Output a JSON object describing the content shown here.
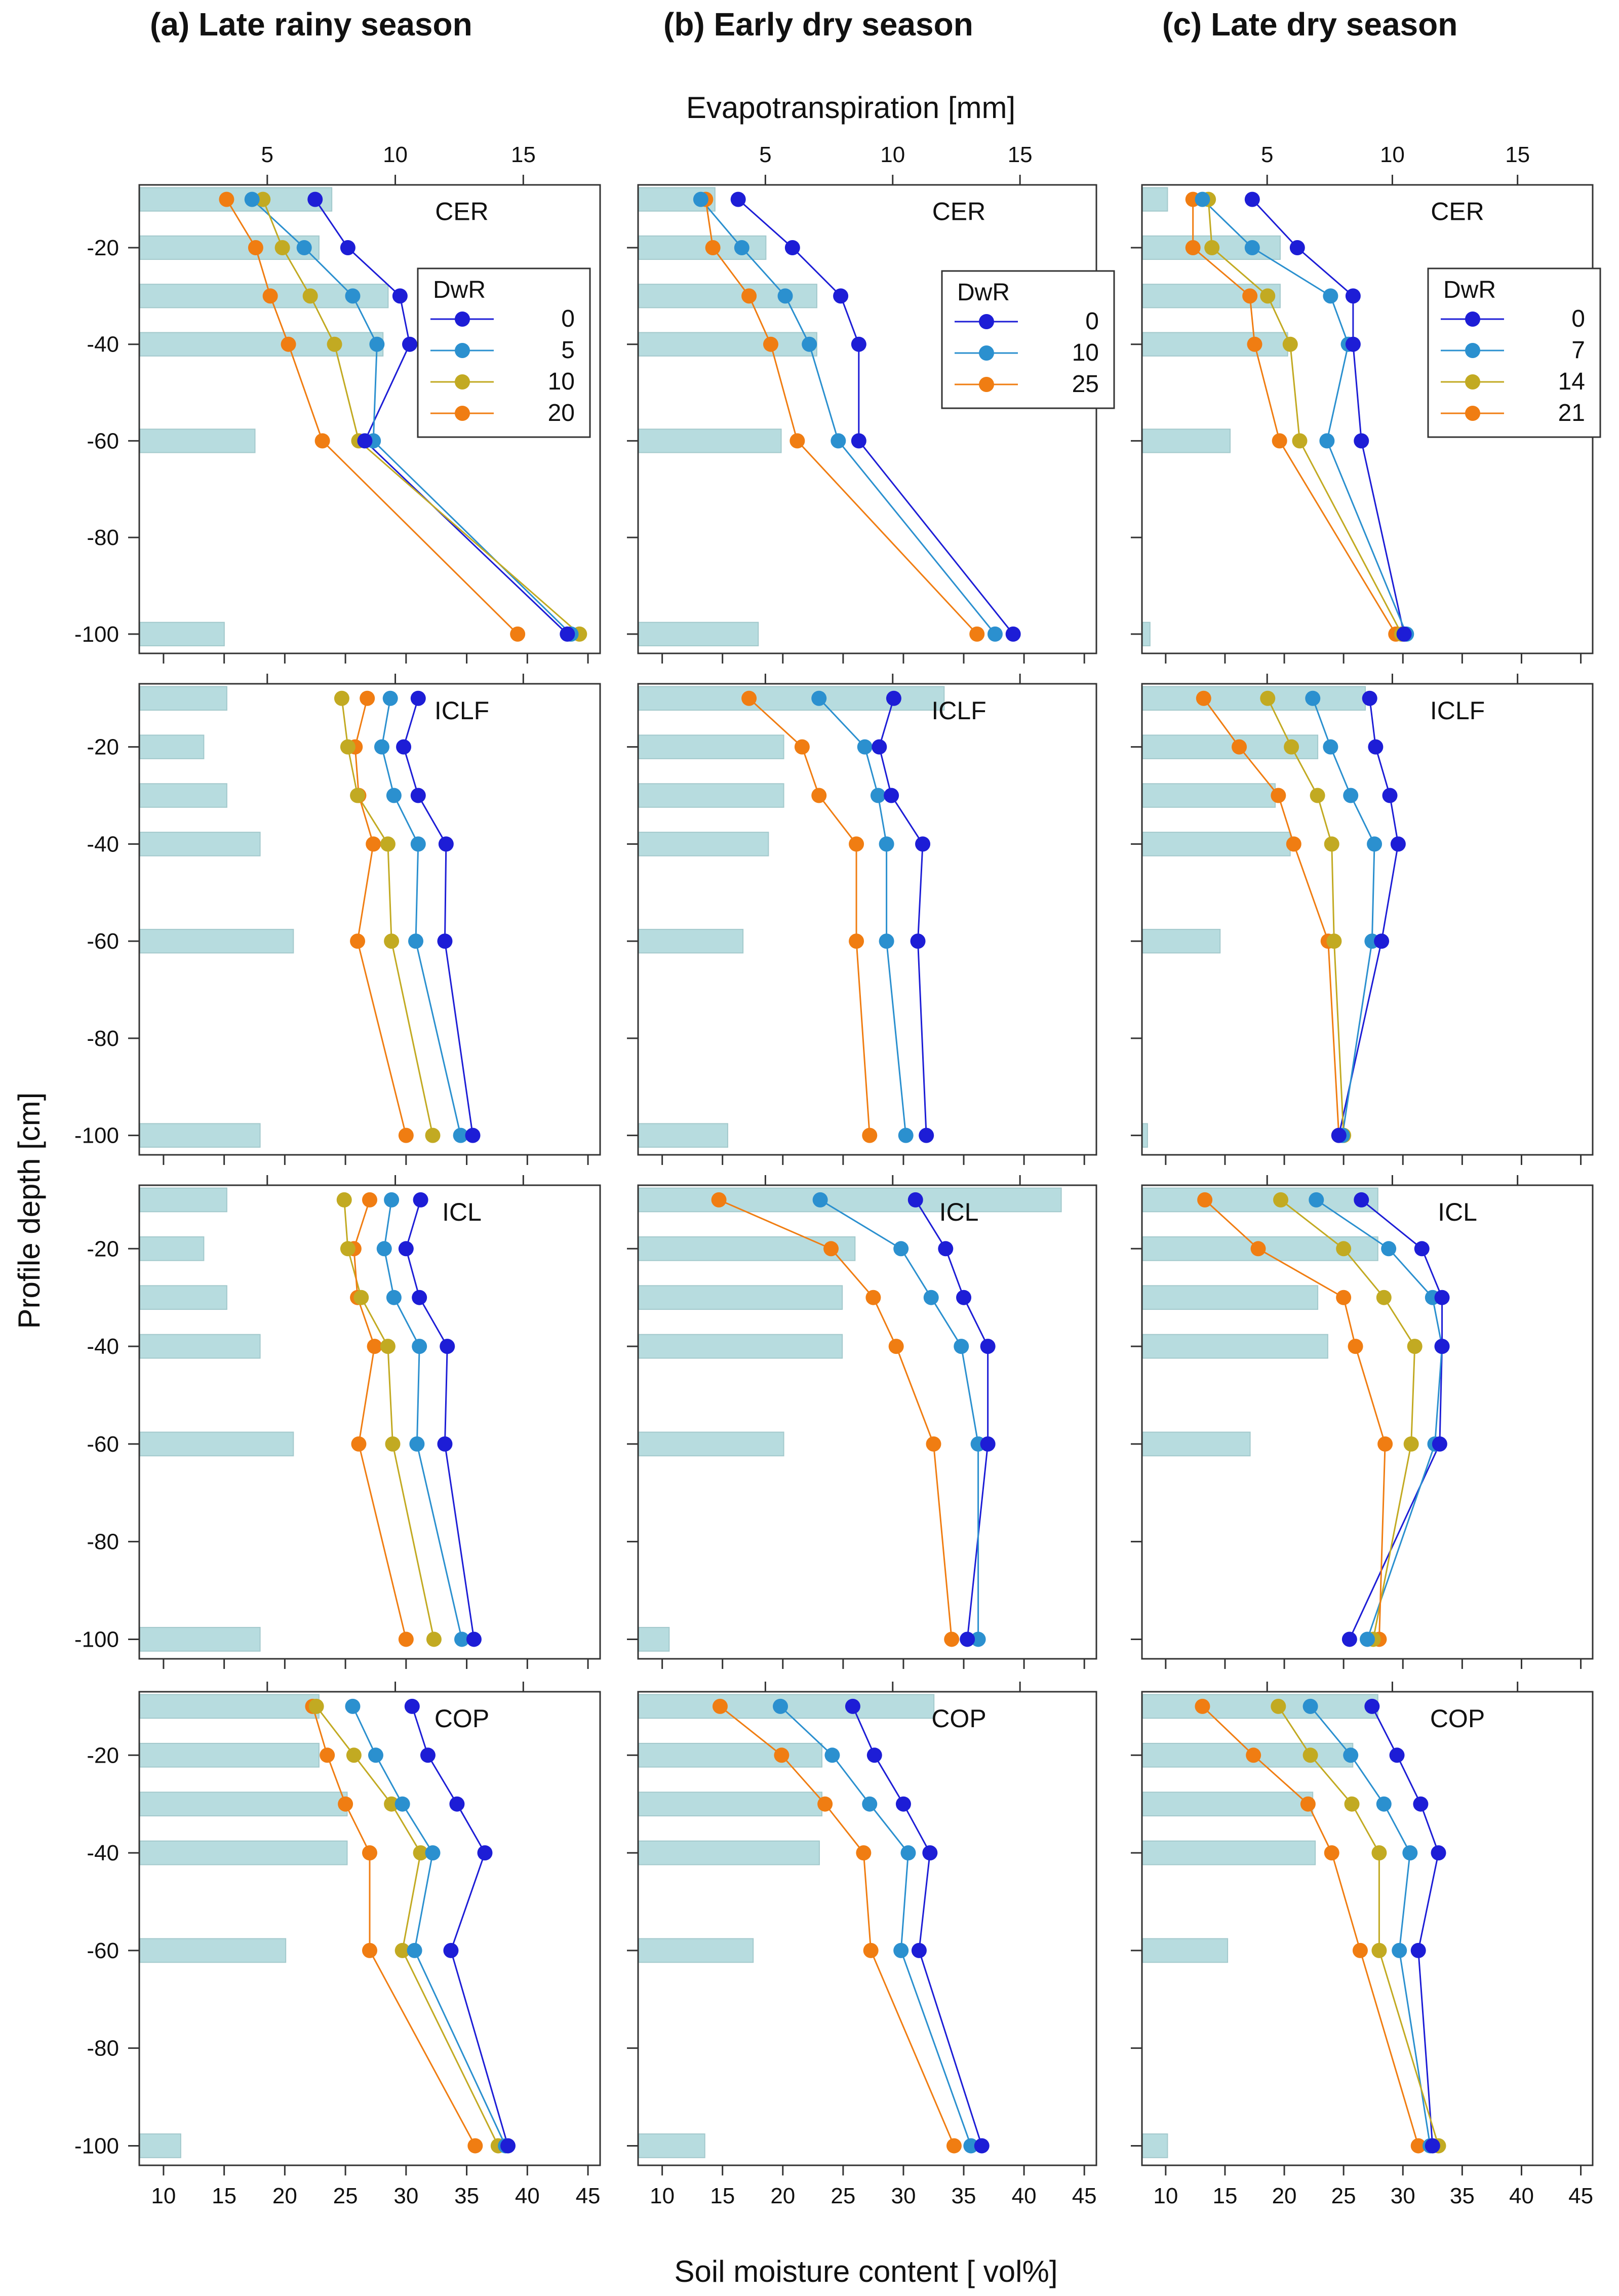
{
  "figure": {
    "top_axis_label": "Evapotranspiration [mm]",
    "bottom_axis_label": "Soil moisture content [ vol%]",
    "y_axis_label": "Profile depth [cm]",
    "colors": {
      "bar": "#b7dcdf",
      "bar_edge": "#a3c9cc",
      "series": [
        "#1d1dd6",
        "#2b90cf",
        "#c2aa22",
        "#f07d12"
      ]
    }
  },
  "chart_data": [
    {
      "type": "line",
      "column": "(a) Late rainy season",
      "site": "CER",
      "xlim": [
        8,
        46
      ],
      "et_xlim": [
        0,
        18
      ],
      "depths": [
        -10,
        -20,
        -30,
        -40,
        -60,
        -100
      ],
      "et_values": [
        7.5,
        7,
        9.7,
        9.5,
        4.5,
        3.3
      ],
      "legend_title": "DwR",
      "series": [
        {
          "name": "0",
          "values": [
            22.5,
            25.2,
            29.5,
            30.3,
            26.6,
            43.3
          ]
        },
        {
          "name": "5",
          "values": [
            17.3,
            21.6,
            25.6,
            27.6,
            27.3,
            43.6
          ]
        },
        {
          "name": "10",
          "values": [
            18.2,
            19.8,
            22.1,
            24.1,
            26.1,
            44.3
          ]
        },
        {
          "name": "20",
          "values": [
            15.2,
            17.6,
            18.8,
            20.3,
            23.1,
            39.2
          ]
        }
      ]
    },
    {
      "type": "line",
      "column": "(b) Early dry season",
      "site": "CER",
      "xlim": [
        8,
        46
      ],
      "et_xlim": [
        0,
        18
      ],
      "depths": [
        -10,
        -20,
        -30,
        -40,
        -60,
        -100
      ],
      "et_values": [
        3,
        5,
        7,
        7,
        5.6,
        4.7
      ],
      "legend_title": "DwR",
      "series": [
        {
          "name": "0",
          "values": [
            16.3,
            20.8,
            24.8,
            26.3,
            26.3,
            39.1
          ]
        },
        {
          "name": "10",
          "values": [
            13.2,
            16.6,
            20.2,
            22.2,
            24.6,
            37.6
          ]
        },
        {
          "name": "25",
          "values": [
            13.6,
            14.2,
            17.2,
            19.0,
            21.2,
            36.1
          ]
        }
      ]
    },
    {
      "type": "line",
      "column": "(c) Late dry season",
      "site": "CER",
      "xlim": [
        8,
        46
      ],
      "et_xlim": [
        0,
        18
      ],
      "depths": [
        -10,
        -20,
        -30,
        -40,
        -60,
        -100
      ],
      "et_values": [
        1,
        5.5,
        5.5,
        5.8,
        3.5,
        0.3
      ],
      "legend_title": "DwR",
      "series": [
        {
          "name": "0",
          "values": [
            17.3,
            21.1,
            25.8,
            25.8,
            26.5,
            30.1
          ]
        },
        {
          "name": "7",
          "values": [
            13.1,
            17.3,
            23.9,
            25.4,
            23.6,
            30.3
          ]
        },
        {
          "name": "14",
          "values": [
            13.6,
            13.9,
            18.6,
            20.5,
            21.3,
            29.9
          ]
        },
        {
          "name": "21",
          "values": [
            12.3,
            12.3,
            17.1,
            17.5,
            19.6,
            29.4
          ]
        }
      ]
    },
    {
      "type": "line",
      "column": "(a) Late rainy season",
      "site": "ICLF",
      "xlim": [
        8,
        46
      ],
      "et_xlim": [
        0,
        18
      ],
      "depths": [
        -10,
        -20,
        -30,
        -40,
        -60,
        -100
      ],
      "et_values": [
        3.4,
        2.5,
        3.4,
        4.7,
        6,
        4.7
      ],
      "series": [
        {
          "name": "0",
          "values": [
            31.0,
            29.8,
            31.0,
            33.3,
            33.2,
            35.5
          ]
        },
        {
          "name": "5",
          "values": [
            28.7,
            28.0,
            29.0,
            31.0,
            30.8,
            34.5
          ]
        },
        {
          "name": "10",
          "values": [
            24.7,
            25.2,
            26.0,
            28.5,
            28.8,
            32.2
          ]
        },
        {
          "name": "20",
          "values": [
            26.8,
            25.8,
            26.1,
            27.3,
            26.0,
            30.0
          ]
        }
      ]
    },
    {
      "type": "line",
      "column": "(b) Early dry season",
      "site": "ICLF",
      "xlim": [
        8,
        46
      ],
      "et_xlim": [
        0,
        18
      ],
      "depths": [
        -10,
        -20,
        -30,
        -40,
        -60,
        -100
      ],
      "et_values": [
        12,
        5.7,
        5.7,
        5.1,
        4.1,
        3.5
      ],
      "series": [
        {
          "name": "0",
          "values": [
            29.2,
            28.0,
            29.0,
            31.6,
            31.2,
            31.9
          ]
        },
        {
          "name": "10",
          "values": [
            23.0,
            26.8,
            27.9,
            28.6,
            28.6,
            30.2
          ]
        },
        {
          "name": "25",
          "values": [
            17.2,
            21.6,
            23.0,
            26.1,
            26.1,
            27.2
          ]
        }
      ]
    },
    {
      "type": "line",
      "column": "(c) Late dry season",
      "site": "ICLF",
      "xlim": [
        8,
        46
      ],
      "et_xlim": [
        0,
        18
      ],
      "depths": [
        -10,
        -20,
        -30,
        -40,
        -60,
        -100
      ],
      "et_values": [
        8.9,
        7,
        5.3,
        5.9,
        3.1,
        0.2
      ],
      "series": [
        {
          "name": "0",
          "values": [
            27.2,
            27.7,
            28.9,
            29.6,
            28.2,
            24.6
          ]
        },
        {
          "name": "7",
          "values": [
            22.4,
            23.9,
            25.6,
            27.6,
            27.4,
            24.9
          ]
        },
        {
          "name": "14",
          "values": [
            18.6,
            20.6,
            22.8,
            24.0,
            24.2,
            25.0
          ]
        },
        {
          "name": "21",
          "values": [
            13.2,
            16.2,
            19.5,
            20.8,
            23.7,
            24.6
          ]
        }
      ]
    },
    {
      "type": "line",
      "column": "(a) Late rainy season",
      "site": "ICL",
      "xlim": [
        8,
        46
      ],
      "et_xlim": [
        0,
        18
      ],
      "depths": [
        -10,
        -20,
        -30,
        -40,
        -60,
        -100
      ],
      "et_values": [
        3.4,
        2.5,
        3.4,
        4.7,
        6,
        4.7
      ],
      "series": [
        {
          "name": "0",
          "values": [
            31.2,
            30.0,
            31.1,
            33.4,
            33.2,
            35.6
          ]
        },
        {
          "name": "5",
          "values": [
            28.8,
            28.2,
            29.0,
            31.1,
            30.9,
            34.6
          ]
        },
        {
          "name": "10",
          "values": [
            24.9,
            25.2,
            26.3,
            28.5,
            28.9,
            32.3
          ]
        },
        {
          "name": "20",
          "values": [
            27.0,
            25.7,
            26.0,
            27.4,
            26.1,
            30.0
          ]
        }
      ]
    },
    {
      "type": "line",
      "column": "(b) Early dry season",
      "site": "ICL",
      "xlim": [
        8,
        46
      ],
      "et_xlim": [
        0,
        18
      ],
      "depths": [
        -10,
        -20,
        -30,
        -40,
        -60,
        -100
      ],
      "et_values": [
        16.6,
        8.5,
        8,
        8,
        5.7,
        1.2
      ],
      "series": [
        {
          "name": "0",
          "values": [
            31.0,
            33.5,
            35.0,
            37.0,
            37.0,
            35.3
          ]
        },
        {
          "name": "10",
          "values": [
            23.1,
            29.8,
            32.3,
            34.8,
            36.2,
            36.2
          ]
        },
        {
          "name": "25",
          "values": [
            14.7,
            24.0,
            27.5,
            29.4,
            32.5,
            34.0
          ]
        }
      ]
    },
    {
      "type": "line",
      "column": "(c) Late dry season",
      "site": "ICL",
      "xlim": [
        8,
        46
      ],
      "et_xlim": [
        0,
        18
      ],
      "depths": [
        -10,
        -20,
        -30,
        -40,
        -60,
        -100
      ],
      "et_values": [
        9.4,
        9.4,
        7,
        7.4,
        4.3,
        0
      ],
      "series": [
        {
          "name": "0",
          "values": [
            26.5,
            31.6,
            33.3,
            33.3,
            33.1,
            25.5
          ]
        },
        {
          "name": "7",
          "values": [
            22.7,
            28.8,
            32.5,
            33.3,
            32.7,
            27.0
          ]
        },
        {
          "name": "14",
          "values": [
            19.7,
            25.0,
            28.4,
            31.0,
            30.7,
            27.5
          ]
        },
        {
          "name": "21",
          "values": [
            13.3,
            17.8,
            25.0,
            26.0,
            28.5,
            28.0
          ]
        }
      ]
    },
    {
      "type": "line",
      "column": "(a) Late rainy season",
      "site": "COP",
      "xlim": [
        8,
        46
      ],
      "et_xlim": [
        0,
        18
      ],
      "depths": [
        -10,
        -20,
        -30,
        -40,
        -60,
        -100
      ],
      "et_values": [
        7,
        7,
        8.1,
        8.1,
        5.7,
        1.6
      ],
      "series": [
        {
          "name": "0",
          "values": [
            30.5,
            31.8,
            34.2,
            36.5,
            33.7,
            38.4
          ]
        },
        {
          "name": "5",
          "values": [
            25.6,
            27.5,
            29.7,
            32.2,
            30.7,
            38.2
          ]
        },
        {
          "name": "10",
          "values": [
            22.6,
            25.7,
            28.8,
            31.2,
            29.7,
            37.6
          ]
        },
        {
          "name": "20",
          "values": [
            22.3,
            23.5,
            25.0,
            27.0,
            27.0,
            35.7
          ]
        }
      ]
    },
    {
      "type": "line",
      "column": "(b) Early dry season",
      "site": "COP",
      "xlim": [
        8,
        46
      ],
      "et_xlim": [
        0,
        18
      ],
      "depths": [
        -10,
        -20,
        -30,
        -40,
        -60,
        -100
      ],
      "et_values": [
        11.6,
        7.2,
        7.2,
        7.1,
        4.5,
        2.6
      ],
      "series": [
        {
          "name": "0",
          "values": [
            25.8,
            27.6,
            30.0,
            32.2,
            31.3,
            36.5
          ]
        },
        {
          "name": "10",
          "values": [
            19.8,
            24.1,
            27.2,
            30.4,
            29.8,
            35.6
          ]
        },
        {
          "name": "25",
          "values": [
            14.8,
            19.9,
            23.5,
            26.7,
            27.3,
            34.2
          ]
        }
      ]
    },
    {
      "type": "line",
      "column": "(c) Late dry season",
      "site": "COP",
      "xlim": [
        8,
        46
      ],
      "et_xlim": [
        0,
        18
      ],
      "depths": [
        -10,
        -20,
        -30,
        -40,
        -60,
        -100
      ],
      "et_values": [
        9.4,
        8.4,
        6.8,
        6.9,
        3.4,
        1
      ],
      "series": [
        {
          "name": "0",
          "values": [
            27.4,
            29.5,
            31.5,
            33.0,
            31.3,
            32.5
          ]
        },
        {
          "name": "7",
          "values": [
            22.2,
            25.6,
            28.4,
            30.6,
            29.7,
            32.3
          ]
        },
        {
          "name": "14",
          "values": [
            19.5,
            22.2,
            25.7,
            28.0,
            28.0,
            33.0
          ]
        },
        {
          "name": "21",
          "values": [
            13.1,
            17.4,
            22.0,
            24.0,
            26.4,
            31.3
          ]
        }
      ]
    }
  ]
}
